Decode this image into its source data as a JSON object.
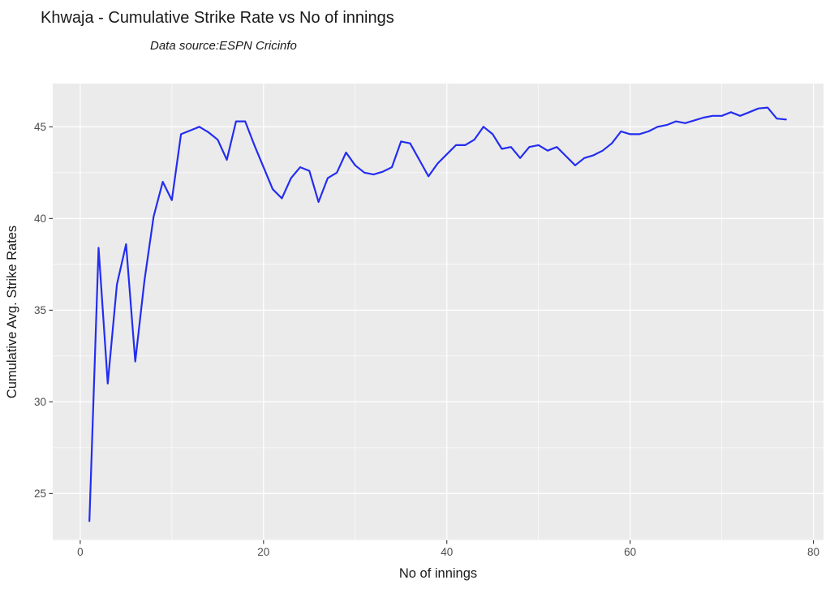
{
  "colors": {
    "line": "#232df0",
    "panel_bg": "#ebebeb",
    "grid": "#ffffff",
    "tick_label": "#4d4d4d",
    "tick_mark": "#333333",
    "text": "#1a1a1a"
  },
  "chart_data": {
    "type": "line",
    "title": "Khwaja - Cumulative Strike Rate vs No of innings",
    "subtitle": "Data source:ESPN Cricinfo",
    "xlabel": "No of innings",
    "ylabel": "Cumulative Avg. Strike Rates",
    "legend": "none",
    "grid": "on",
    "x_ticks": [
      0,
      20,
      40,
      60,
      80
    ],
    "y_ticks": [
      25,
      30,
      35,
      40,
      45
    ],
    "x_minor": [
      10,
      30,
      50,
      70
    ],
    "y_minor": [
      22.5,
      27.5,
      32.5,
      37.5,
      42.5
    ],
    "xlim": [
      -3.0,
      81.1
    ],
    "ylim": [
      22.45,
      47.36
    ],
    "x": [
      1,
      2,
      3,
      4,
      5,
      6,
      7,
      8,
      9,
      10,
      11,
      12,
      13,
      14,
      15,
      16,
      17,
      18,
      19,
      20,
      21,
      22,
      23,
      24,
      25,
      26,
      27,
      28,
      29,
      30,
      31,
      32,
      33,
      34,
      35,
      36,
      37,
      38,
      39,
      40,
      41,
      42,
      43,
      44,
      45,
      46,
      47,
      48,
      49,
      50,
      51,
      52,
      53,
      54,
      55,
      56,
      57,
      58,
      59,
      60,
      61,
      62,
      63,
      64,
      65,
      66,
      67,
      68,
      69,
      70,
      71,
      72,
      73,
      74,
      75,
      76,
      77
    ],
    "series": [
      {
        "name": "Cumulative Avg. Strike Rate",
        "values": [
          23.5,
          38.4,
          31.0,
          36.4,
          38.6,
          32.2,
          36.6,
          40.1,
          42.0,
          41.0,
          44.6,
          44.8,
          45.0,
          44.7,
          44.3,
          43.2,
          45.3,
          45.3,
          44.0,
          42.8,
          41.6,
          41.1,
          42.2,
          42.8,
          42.6,
          40.9,
          42.2,
          42.5,
          43.6,
          42.9,
          42.5,
          42.4,
          42.55,
          42.8,
          44.2,
          44.1,
          43.2,
          42.3,
          43.0,
          43.5,
          44.0,
          44.0,
          44.3,
          45.0,
          44.6,
          43.8,
          43.9,
          43.3,
          43.9,
          44.0,
          43.7,
          43.9,
          43.4,
          42.9,
          43.3,
          43.45,
          43.7,
          44.1,
          44.75,
          44.6,
          44.6,
          44.75,
          45.0,
          45.1,
          45.3,
          45.2,
          45.35,
          45.5,
          45.6,
          45.6,
          45.8,
          45.6,
          45.8,
          46.0,
          46.05,
          45.45,
          45.4
        ]
      }
    ]
  }
}
